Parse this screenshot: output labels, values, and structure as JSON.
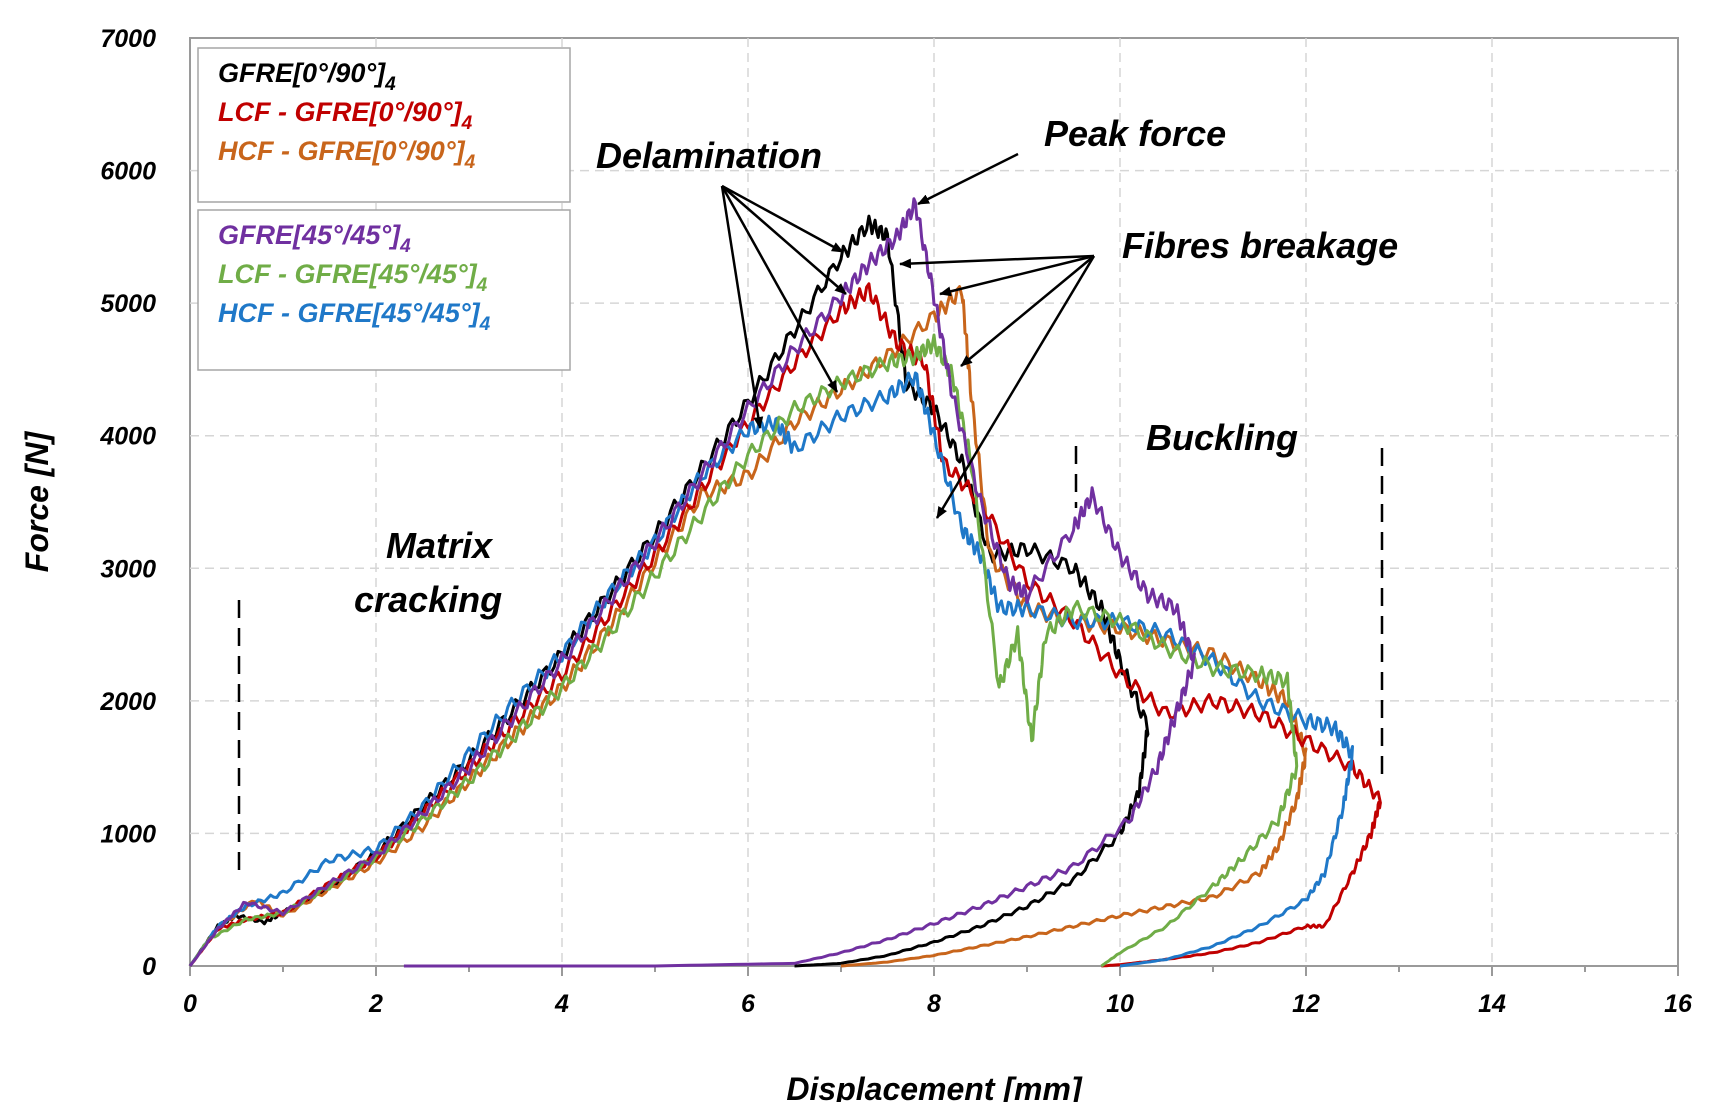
{
  "chart_data": {
    "type": "line",
    "xlabel": "Displacement  [mm]",
    "ylabel": "Force [N]",
    "xlim": [
      0,
      16
    ],
    "ylim": [
      0,
      7000
    ],
    "xticks": [
      0,
      2,
      4,
      6,
      8,
      10,
      12,
      14,
      16
    ],
    "yticks": [
      0,
      1000,
      2000,
      3000,
      4000,
      5000,
      6000,
      7000
    ],
    "grid": true,
    "legend_position": "top-left",
    "legend_groups": [
      {
        "entries": [
          {
            "text": "GFRE[0°/90°]",
            "sub": "4",
            "series": 0
          },
          {
            "text": "LCF - GFRE[0°/90°]",
            "sub": "4",
            "series": 1
          },
          {
            "text": "HCF - GFRE[0°/90°]",
            "sub": "4",
            "series": 2
          }
        ]
      },
      {
        "entries": [
          {
            "text": "GFRE[45°/45°]",
            "sub": "4",
            "series": 3
          },
          {
            "text": "LCF - GFRE[45°/45°]",
            "sub": "4",
            "series": 4
          },
          {
            "text": "HCF - GFRE[45°/45°]",
            "sub": "4",
            "series": 5
          }
        ]
      }
    ],
    "series": [
      {
        "name": "GFRE[0°/90°]4",
        "color": "#000000",
        "x": [
          0,
          0.3,
          0.5,
          0.8,
          1.0,
          1.5,
          2.0,
          2.5,
          3.0,
          3.5,
          4.0,
          4.5,
          5.0,
          5.5,
          6.0,
          6.5,
          7.0,
          7.3,
          7.5,
          7.7,
          8.0,
          8.3,
          8.6,
          9.0,
          9.5,
          9.8,
          10.0,
          10.3,
          10.2,
          10.0,
          9.5,
          9.0,
          8.5,
          8.0,
          7.5,
          7.0,
          6.5
        ],
        "y": [
          0,
          300,
          380,
          330,
          400,
          600,
          850,
          1200,
          1550,
          1950,
          2350,
          2800,
          3250,
          3750,
          4250,
          4800,
          5350,
          5600,
          5500,
          4400,
          4200,
          3800,
          3100,
          3150,
          3000,
          2700,
          2300,
          1800,
          1300,
          1000,
          650,
          450,
          300,
          180,
          80,
          20,
          0
        ]
      },
      {
        "name": "LCF - GFRE[0°/90°]4",
        "color": "#c00000",
        "x": [
          0,
          0.3,
          0.6,
          1.0,
          1.5,
          2.0,
          2.5,
          3.0,
          3.5,
          4.0,
          4.5,
          5.0,
          5.5,
          6.0,
          6.5,
          7.0,
          7.3,
          7.6,
          7.9,
          8.1,
          8.5,
          9.0,
          9.5,
          10.0,
          10.5,
          11.0,
          11.5,
          12.0,
          12.5,
          12.8,
          12.7,
          12.5,
          12.2,
          12.0,
          11.5,
          11.0,
          10.5,
          10.0,
          9.8
        ],
        "y": [
          0,
          280,
          350,
          400,
          620,
          820,
          1150,
          1500,
          1850,
          2200,
          2650,
          3100,
          3600,
          4100,
          4550,
          4950,
          5100,
          4700,
          4550,
          3800,
          3500,
          2900,
          2600,
          2200,
          1900,
          2000,
          1900,
          1700,
          1500,
          1250,
          1000,
          700,
          300,
          300,
          180,
          100,
          50,
          10,
          0
        ]
      },
      {
        "name": "HCF - GFRE[0°/90°]4",
        "color": "#c8651b",
        "x": [
          0,
          0.3,
          0.7,
          1.0,
          1.5,
          2.0,
          2.5,
          3.0,
          3.5,
          4.0,
          4.5,
          5.0,
          5.5,
          6.0,
          6.5,
          7.0,
          7.5,
          8.0,
          8.3,
          8.4,
          8.6,
          9.0,
          9.5,
          10.0,
          10.5,
          11.0,
          11.5,
          11.8,
          12.0,
          11.9,
          11.7,
          11.5,
          11.0,
          10.5,
          10.0,
          9.5,
          9.0,
          8.5,
          8.0,
          7.5,
          7.0
        ],
        "y": [
          0,
          280,
          500,
          380,
          580,
          780,
          1050,
          1400,
          1750,
          2100,
          2550,
          3050,
          3550,
          3700,
          4100,
          4350,
          4600,
          4900,
          5100,
          4300,
          3100,
          2700,
          2600,
          2550,
          2450,
          2350,
          2150,
          2000,
          1600,
          1250,
          900,
          700,
          520,
          450,
          380,
          300,
          220,
          150,
          80,
          30,
          0
        ]
      },
      {
        "name": "GFRE[45°/45°]4",
        "color": "#7030a0",
        "x": [
          0,
          0.3,
          0.6,
          1.0,
          1.5,
          2.0,
          2.5,
          3.0,
          3.5,
          4.0,
          4.5,
          5.0,
          5.5,
          6.0,
          6.5,
          7.0,
          7.3,
          7.6,
          7.8,
          8.0,
          8.2,
          8.5,
          8.8,
          9.0,
          9.5,
          9.7,
          10.0,
          10.3,
          10.6,
          10.8,
          10.6,
          10.4,
          10.1,
          9.5,
          9.0,
          8.5,
          8.0,
          7.5,
          7.0,
          6.5,
          5.0,
          3.0,
          2.3
        ],
        "y": [
          0,
          280,
          480,
          400,
          620,
          830,
          1150,
          1500,
          1900,
          2300,
          2750,
          3200,
          3700,
          4200,
          4650,
          5050,
          5300,
          5500,
          5750,
          5050,
          4300,
          3500,
          2900,
          2800,
          3300,
          3550,
          3100,
          2800,
          2700,
          2300,
          1900,
          1500,
          1100,
          750,
          600,
          450,
          320,
          200,
          100,
          20,
          0,
          0,
          0
        ]
      },
      {
        "name": "LCF - GFRE[45°/45°]4",
        "color": "#70ad47",
        "x": [
          0,
          0.2,
          0.6,
          1.0,
          1.5,
          2.0,
          2.5,
          3.0,
          3.5,
          4.0,
          4.5,
          5.0,
          5.5,
          6.0,
          6.5,
          7.0,
          7.5,
          7.8,
          8.0,
          8.2,
          8.4,
          8.7,
          8.9,
          9.05,
          9.2,
          9.5,
          10.0,
          10.5,
          11.0,
          11.5,
          11.8,
          11.9,
          11.7,
          11.3,
          11.0,
          10.5,
          10.0,
          9.8
        ],
        "y": [
          0,
          200,
          350,
          400,
          600,
          820,
          1100,
          1400,
          1750,
          2100,
          2500,
          2950,
          3400,
          3850,
          4200,
          4400,
          4550,
          4600,
          4700,
          4450,
          3800,
          2100,
          2500,
          1700,
          2500,
          2700,
          2600,
          2400,
          2250,
          2200,
          2150,
          1500,
          1100,
          800,
          600,
          300,
          100,
          0
        ]
      },
      {
        "name": "HCF - GFRE[45°/45°]4",
        "color": "#1f78c8",
        "x": [
          0,
          0.3,
          0.6,
          1.0,
          1.5,
          2.0,
          2.5,
          3.0,
          3.5,
          4.0,
          4.5,
          5.0,
          5.5,
          6.0,
          6.3,
          6.5,
          7.0,
          7.5,
          7.8,
          8.0,
          8.3,
          8.5,
          8.7,
          9.0,
          9.5,
          10.0,
          10.5,
          11.0,
          11.5,
          12.0,
          12.3,
          12.5,
          12.4,
          12.2,
          12.0,
          11.5,
          11.0,
          10.5,
          10.0
        ],
        "y": [
          0,
          300,
          450,
          550,
          800,
          880,
          1200,
          1600,
          2000,
          2350,
          2800,
          3200,
          3700,
          4050,
          4100,
          3900,
          4150,
          4300,
          4450,
          4000,
          3300,
          3100,
          2700,
          2700,
          2600,
          2600,
          2500,
          2300,
          2000,
          1850,
          1800,
          1600,
          1200,
          700,
          500,
          300,
          150,
          50,
          0
        ]
      }
    ],
    "annotations": [
      {
        "text": "Delamination"
      },
      {
        "text": "Peak force"
      },
      {
        "text": "Fibres breakage"
      },
      {
        "text": "Buckling"
      },
      {
        "text": "Matrix"
      },
      {
        "text": "cracking"
      }
    ]
  }
}
